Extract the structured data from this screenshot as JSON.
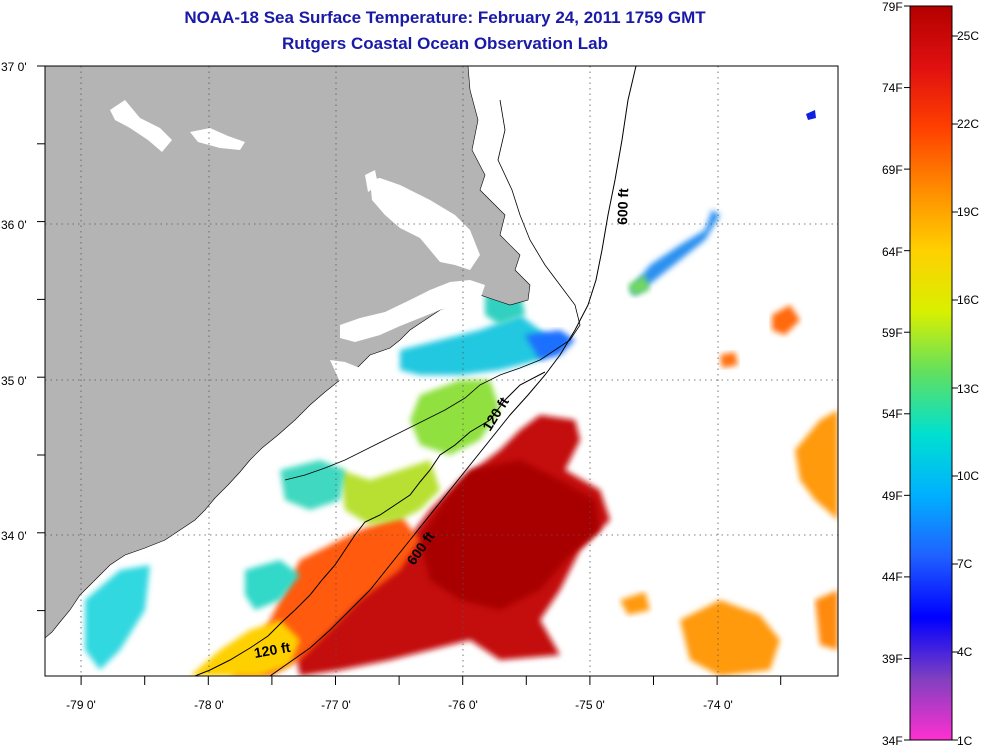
{
  "header": {
    "title": "NOAA-18 Sea Surface Temperature:  February 24, 2011 1759 GMT",
    "subtitle": "Rutgers Coastal Ocean Observation Lab"
  },
  "map": {
    "lon_range": [
      -79.3,
      -73.0
    ],
    "lat_range": [
      33.15,
      37.0
    ],
    "lon_ticks": [
      "-79 0'",
      "-78 0'",
      "-77 0'",
      "-76 0'",
      "-75 0'",
      "-74 0'"
    ],
    "lat_ticks": [
      "37 0'",
      "36 0'",
      "35 0'",
      "34 0'"
    ],
    "contours": [
      {
        "label": "600 ft",
        "rotation": "vertical"
      },
      {
        "label": "120 ft",
        "rotation": "diagonal"
      },
      {
        "label": "600 ft",
        "rotation": "diagonal"
      },
      {
        "label": "120 ft",
        "rotation": "slight"
      }
    ],
    "colors": {
      "land": "#b4b4b4",
      "ocean_missing": "#ffffff",
      "title": "#1a1aa8"
    }
  },
  "colorbar": {
    "fahrenheit_labels": [
      "79F",
      "74F",
      "69F",
      "64F",
      "59F",
      "54F",
      "49F",
      "44F",
      "39F",
      "34F"
    ],
    "celsius_labels": [
      "25C",
      "22C",
      "19C",
      "16C",
      "13C",
      "10C",
      "7C",
      "4C",
      "1C"
    ],
    "gradient_stops": [
      "#b40000",
      "#e01010",
      "#ff4000",
      "#ff8c00",
      "#ffd000",
      "#d8f000",
      "#60e060",
      "#00e0d0",
      "#00b0ff",
      "#2060ff",
      "#0000ff",
      "#8040c0",
      "#ff30d0"
    ]
  }
}
